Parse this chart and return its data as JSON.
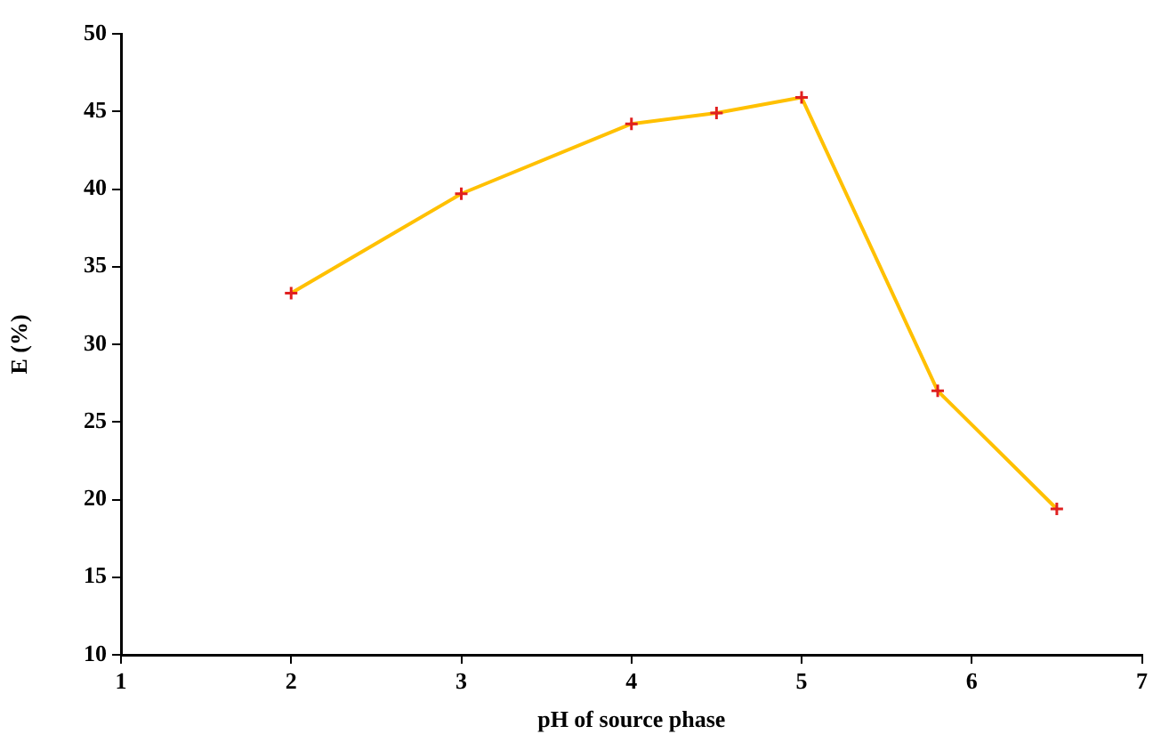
{
  "chart_data": {
    "type": "line",
    "xlabel": "pH of source phase",
    "ylabel": "E (%)",
    "x": [
      2,
      3,
      4,
      4.5,
      5,
      5.8,
      6.5
    ],
    "series": [
      {
        "color": "#ffc000",
        "values": [
          33.3,
          39.7,
          44.2,
          44.9,
          45.9,
          27.0,
          19.4
        ]
      }
    ],
    "xlim": [
      1,
      7
    ],
    "xticks": [
      1,
      2,
      3,
      4,
      5,
      6,
      7
    ],
    "ylim": [
      10,
      50
    ],
    "yticks": [
      10,
      15,
      20,
      25,
      30,
      35,
      40,
      45,
      50
    ],
    "grid": false,
    "legend": false,
    "marker": "cross",
    "line_style": "solid"
  }
}
